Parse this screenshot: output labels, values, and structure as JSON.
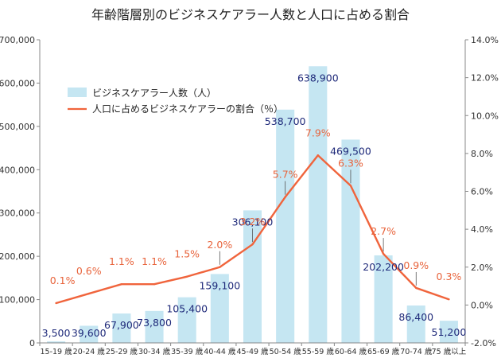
{
  "chart_data": {
    "type": "bar",
    "title": "年齢階層別のビジネスケアラー人数と人口に占める割合",
    "categories": [
      "15-19 歳",
      "20-24 歳",
      "25-29 歳",
      "30-34 歳",
      "35-39 歳",
      "40-44 歳",
      "45-49 歳",
      "50-54 歳",
      "55-59 歳",
      "60-64 歳",
      "65-69 歳",
      "70-74 歳",
      "75 歳以上"
    ],
    "series": [
      {
        "name": "ビジネスケアラー人数（人）",
        "type": "bar",
        "axis": "left",
        "values": [
          3500,
          39600,
          67900,
          73800,
          105400,
          159100,
          306100,
          538700,
          638900,
          469500,
          202200,
          86400,
          51200
        ],
        "labels": [
          "3,500",
          "39,600",
          "67,900",
          "73,800",
          "105,400",
          "159,100",
          "306,100",
          "538,700",
          "638,900",
          "469,500",
          "202,200",
          "86,400",
          "51,200"
        ],
        "color": "#c5e6f2"
      },
      {
        "name": "人口に占めるビジネスケアラーの割合（％）",
        "type": "line",
        "axis": "right",
        "values": [
          0.1,
          0.6,
          1.1,
          1.1,
          1.5,
          2.0,
          3.2,
          5.7,
          7.9,
          6.3,
          2.7,
          0.9,
          0.3
        ],
        "labels": [
          "0.1%",
          "0.6%",
          "1.1%",
          "1.1%",
          "1.5%",
          "2.0%",
          "3.2%",
          "5.7%",
          "7.9%",
          "6.3%",
          "2.7%",
          "0.9%",
          "0.3%"
        ],
        "color": "#f0643c"
      }
    ],
    "y_left": {
      "range": [
        0,
        700000
      ],
      "ticks": [
        0,
        100000,
        200000,
        300000,
        400000,
        500000,
        600000,
        700000
      ],
      "tick_labels": [
        "0",
        "100,000",
        "200,000",
        "300,000",
        "400,000",
        "500,000",
        "600,000",
        "700,000"
      ]
    },
    "y_right": {
      "range": [
        -2.0,
        14.0
      ],
      "ticks": [
        -2,
        0,
        2,
        4,
        6,
        8,
        10,
        12,
        14
      ],
      "tick_labels": [
        "-2.0%",
        "0.0%",
        "2.0%",
        "4.0%",
        "6.0%",
        "8.0%",
        "10.0%",
        "12.0%",
        "14.0%"
      ]
    },
    "grid": false,
    "legend_position": "top-left"
  }
}
